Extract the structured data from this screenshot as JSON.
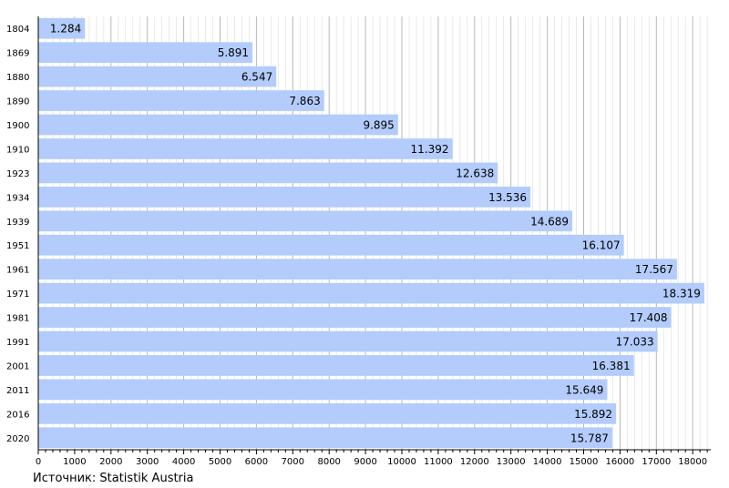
{
  "chart_data": {
    "type": "bar",
    "orientation": "horizontal",
    "categories": [
      "1804",
      "1869",
      "1880",
      "1890",
      "1900",
      "1910",
      "1923",
      "1934",
      "1939",
      "1951",
      "1961",
      "1971",
      "1981",
      "1991",
      "2001",
      "2011",
      "2016",
      "2020"
    ],
    "values": [
      1284,
      5891,
      6547,
      7863,
      9895,
      11392,
      12638,
      13536,
      14689,
      16107,
      17567,
      18319,
      17408,
      17033,
      16381,
      15649,
      15892,
      15787
    ],
    "value_labels": [
      "1.284",
      "5.891",
      "6.547",
      "7.863",
      "9.895",
      "11.392",
      "12.638",
      "13.536",
      "14.689",
      "16.107",
      "17.567",
      "18.319",
      "17.408",
      "17.033",
      "16.381",
      "15.649",
      "15.892",
      "15.787"
    ],
    "xticks": [
      0,
      1000,
      2000,
      3000,
      4000,
      5000,
      6000,
      7000,
      8000,
      9000,
      10000,
      11000,
      12000,
      13000,
      14000,
      15000,
      16000,
      17000,
      18000
    ],
    "xlim": [
      0,
      18500
    ],
    "grid": true,
    "bar_color": "#b3ccfc",
    "title": "",
    "xlabel": "",
    "ylabel": ""
  },
  "source": "Источник: Statistik Austria"
}
